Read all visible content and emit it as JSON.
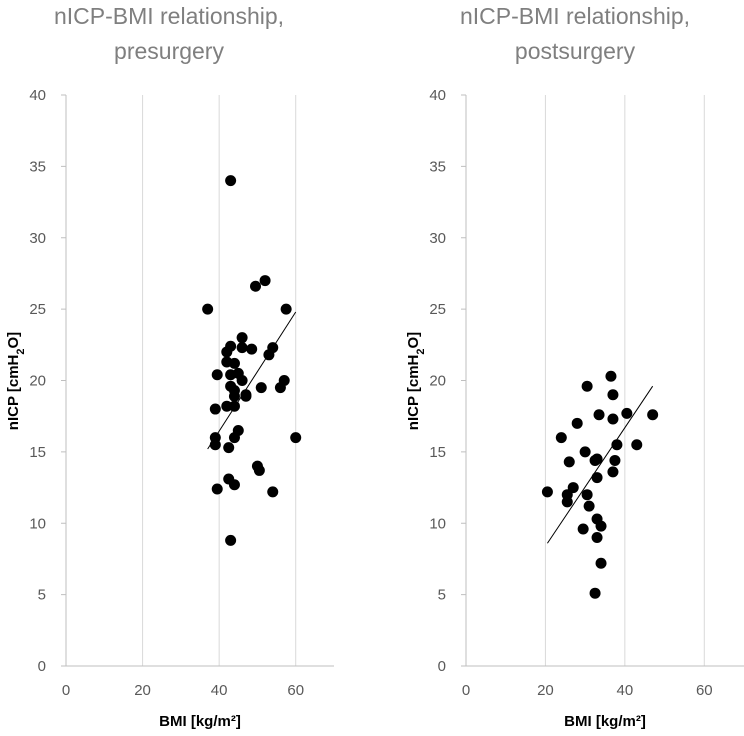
{
  "chart_data": [
    {
      "type": "scatter",
      "title": [
        "nICP-BMI relationship,",
        "presurgery"
      ],
      "xlabel": "BMI [kg/m²]",
      "ylabel": "nICP [cmH2O]",
      "xlim": [
        0,
        70
      ],
      "ylim": [
        0,
        40
      ],
      "xticks": [
        0,
        20,
        40,
        60
      ],
      "yticks": [
        0,
        5,
        10,
        15,
        20,
        25,
        30,
        35,
        40
      ],
      "grid": "vertical",
      "series": [
        {
          "name": "presurgery",
          "points": [
            [
              43,
              34.0
            ],
            [
              37,
              25.0
            ],
            [
              52,
              27.0
            ],
            [
              49.5,
              26.6
            ],
            [
              57.5,
              25.0
            ],
            [
              46,
              23.0
            ],
            [
              43,
              22.4
            ],
            [
              42,
              22.0
            ],
            [
              46,
              22.3
            ],
            [
              48.5,
              22.2
            ],
            [
              54,
              22.3
            ],
            [
              53,
              21.8
            ],
            [
              42,
              21.3
            ],
            [
              44,
              21.2
            ],
            [
              43,
              20.4
            ],
            [
              45,
              20.5
            ],
            [
              39.5,
              20.4
            ],
            [
              46,
              20.0
            ],
            [
              57,
              20.0
            ],
            [
              43,
              19.6
            ],
            [
              44,
              19.3
            ],
            [
              51,
              19.5
            ],
            [
              56,
              19.5
            ],
            [
              47,
              18.9
            ],
            [
              47,
              19.0
            ],
            [
              44,
              18.9
            ],
            [
              39,
              18.0
            ],
            [
              42,
              18.2
            ],
            [
              44,
              18.2
            ],
            [
              45,
              16.5
            ],
            [
              44,
              16.0
            ],
            [
              39,
              16.0
            ],
            [
              60,
              16.0
            ],
            [
              39,
              15.5
            ],
            [
              42.5,
              15.3
            ],
            [
              50,
              14.0
            ],
            [
              50.5,
              13.7
            ],
            [
              42.5,
              13.1
            ],
            [
              44,
              12.7
            ],
            [
              39.5,
              12.4
            ],
            [
              54,
              12.2
            ],
            [
              43,
              8.8
            ]
          ]
        }
      ],
      "trendline": {
        "x": [
          37,
          60
        ],
        "y": [
          15.2,
          24.8
        ]
      }
    },
    {
      "type": "scatter",
      "title": [
        "nICP-BMI relationship,",
        "postsurgery"
      ],
      "xlabel": "BMI [kg/m²]",
      "ylabel": "nICP [cmH2O]",
      "xlim": [
        0,
        70
      ],
      "ylim": [
        0,
        40
      ],
      "xticks": [
        0,
        20,
        40,
        60
      ],
      "yticks": [
        0,
        5,
        10,
        15,
        20,
        25,
        30,
        35,
        40
      ],
      "grid": "vertical",
      "series": [
        {
          "name": "postsurgery",
          "points": [
            [
              36.5,
              20.3
            ],
            [
              30.5,
              19.6
            ],
            [
              37,
              19.0
            ],
            [
              33.5,
              17.6
            ],
            [
              37,
              17.3
            ],
            [
              40.5,
              17.7
            ],
            [
              47,
              17.6
            ],
            [
              28,
              17.0
            ],
            [
              24,
              16.0
            ],
            [
              38,
              15.5
            ],
            [
              43,
              15.5
            ],
            [
              30,
              15.0
            ],
            [
              32.5,
              14.4
            ],
            [
              33,
              14.5
            ],
            [
              26,
              14.3
            ],
            [
              37.5,
              14.4
            ],
            [
              37,
              13.6
            ],
            [
              33,
              13.2
            ],
            [
              27,
              12.5
            ],
            [
              20.5,
              12.2
            ],
            [
              25.5,
              12.0
            ],
            [
              30.5,
              12.0
            ],
            [
              25.5,
              11.5
            ],
            [
              31,
              11.2
            ],
            [
              33,
              10.3
            ],
            [
              34,
              9.8
            ],
            [
              29.5,
              9.6
            ],
            [
              33,
              9.0
            ],
            [
              34,
              7.2
            ],
            [
              32.5,
              5.1
            ]
          ]
        }
      ],
      "trendline": {
        "x": [
          20.5,
          47
        ],
        "y": [
          8.6,
          19.6
        ]
      }
    }
  ]
}
